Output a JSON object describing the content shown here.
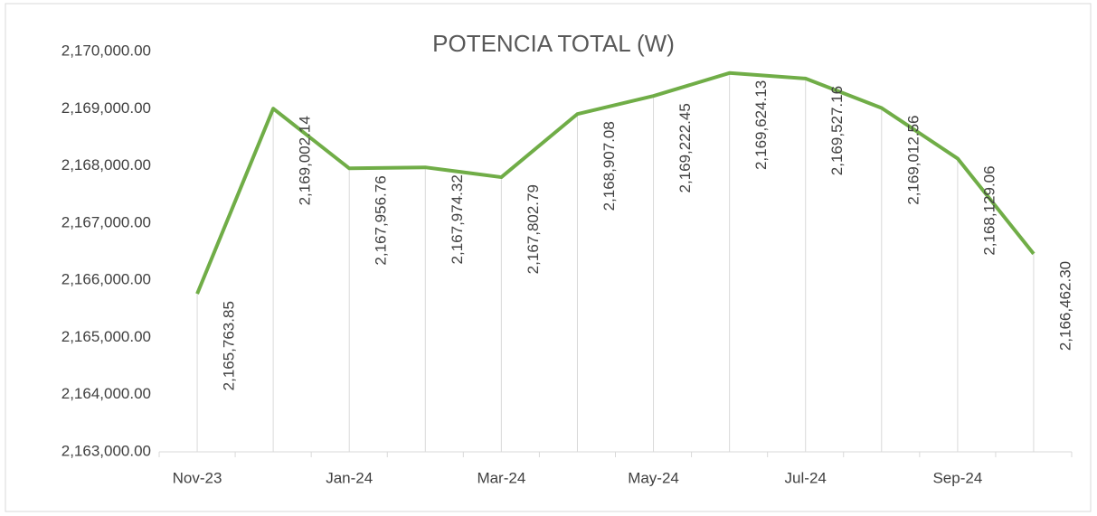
{
  "chart_data": {
    "type": "line",
    "title": "POTENCIA TOTAL (W)",
    "categories": [
      "Nov-23",
      null,
      "Jan-24",
      null,
      "Mar-24",
      null,
      "May-24",
      null,
      "Jul-24",
      null,
      "Sep-24",
      null
    ],
    "series": [
      {
        "name": "POTENCIA TOTAL (W)",
        "color": "#70ad47",
        "values": [
          2165763.85,
          2169002.14,
          2167956.76,
          2167974.32,
          2167802.79,
          2168907.08,
          2169222.45,
          2169624.13,
          2169527.16,
          2169012.56,
          2168129.06,
          2166462.3
        ],
        "value_labels": [
          "2,165,763.85",
          "2,169,002.14",
          "2,167,956.76",
          "2,167,974.32",
          "2,167,802.79",
          "2,168,907.08",
          "2,169,222.45",
          "2,169,624.13",
          "2,169,527.16",
          "2,169,012.56",
          "2,168,129.06",
          "2,166,462.30"
        ]
      }
    ],
    "ylim": [
      2163000,
      2170000
    ],
    "yticks": [
      {
        "value": 2163000,
        "label": "2,163,000.00"
      },
      {
        "value": 2164000,
        "label": "2,164,000.00"
      },
      {
        "value": 2165000,
        "label": "2,165,000.00"
      },
      {
        "value": 2166000,
        "label": "2,166,000.00"
      },
      {
        "value": 2167000,
        "label": "2,167,000.00"
      },
      {
        "value": 2168000,
        "label": "2,168,000.00"
      },
      {
        "value": 2169000,
        "label": "2,169,000.00"
      },
      {
        "value": 2170000,
        "label": "2,170,000.00"
      }
    ],
    "drop_lines": true
  }
}
